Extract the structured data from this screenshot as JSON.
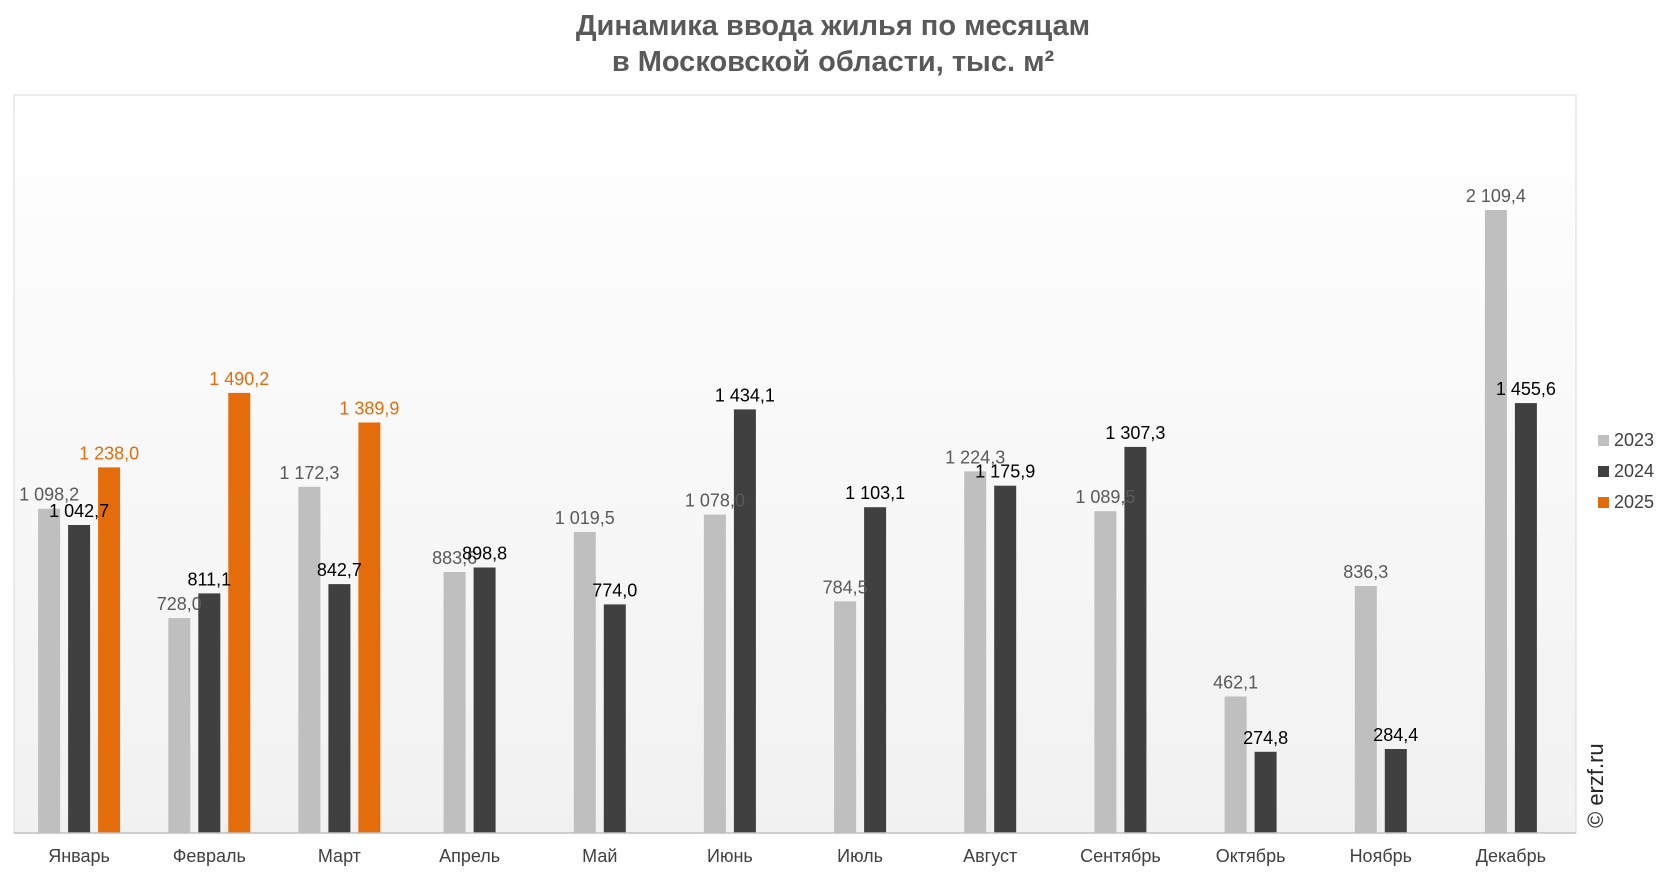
{
  "chart_data": {
    "type": "bar",
    "title_line1": "Динамика ввода жилья по месяцам",
    "title_line2": "в Московской области, тыс. м²",
    "categories": [
      "Январь",
      "Февраль",
      "Март",
      "Апрель",
      "Май",
      "Июнь",
      "Июль",
      "Август",
      "Сентябрь",
      "Октябрь",
      "Ноябрь",
      "Декабрь"
    ],
    "series": [
      {
        "name": "2023",
        "color": "#bfbfbf",
        "label_color": "#595959",
        "values": [
          1098.2,
          728.0,
          1172.3,
          883.6,
          1019.5,
          1078.0,
          784.5,
          1224.3,
          1089.5,
          462.1,
          836.3,
          2109.4
        ],
        "labels": [
          "1 098,2",
          "728,0",
          "1 172,3",
          "883,6",
          "1 019,5",
          "1 078,0",
          "784,5",
          "1 224,3",
          "1 089,5",
          "462,1",
          "836,3",
          "2 109,4"
        ]
      },
      {
        "name": "2024",
        "color": "#404040",
        "label_color": "#000000",
        "values": [
          1042.7,
          811.1,
          842.7,
          898.8,
          774.0,
          1434.1,
          1103.1,
          1175.9,
          1307.3,
          274.8,
          284.4,
          1455.6
        ],
        "labels": [
          "1 042,7",
          "811,1",
          "842,7",
          "898,8",
          "774,0",
          "1 434,1",
          "1 103,1",
          "1 175,9",
          "1 307,3",
          "274,8",
          "284,4",
          "1 455,6"
        ]
      },
      {
        "name": "2025",
        "color": "#e46c0a",
        "label_color": "#e46c0a",
        "values": [
          1238.0,
          1490.2,
          1389.9,
          null,
          null,
          null,
          null,
          null,
          null,
          null,
          null,
          null
        ],
        "labels": [
          "1 238,0",
          "1 490,2",
          "1 389,9",
          null,
          null,
          null,
          null,
          null,
          null,
          null,
          null,
          null
        ]
      }
    ],
    "ylim": [
      0,
      2500
    ],
    "grid": false,
    "legend_position": "right"
  },
  "watermark": "© erzf.ru"
}
